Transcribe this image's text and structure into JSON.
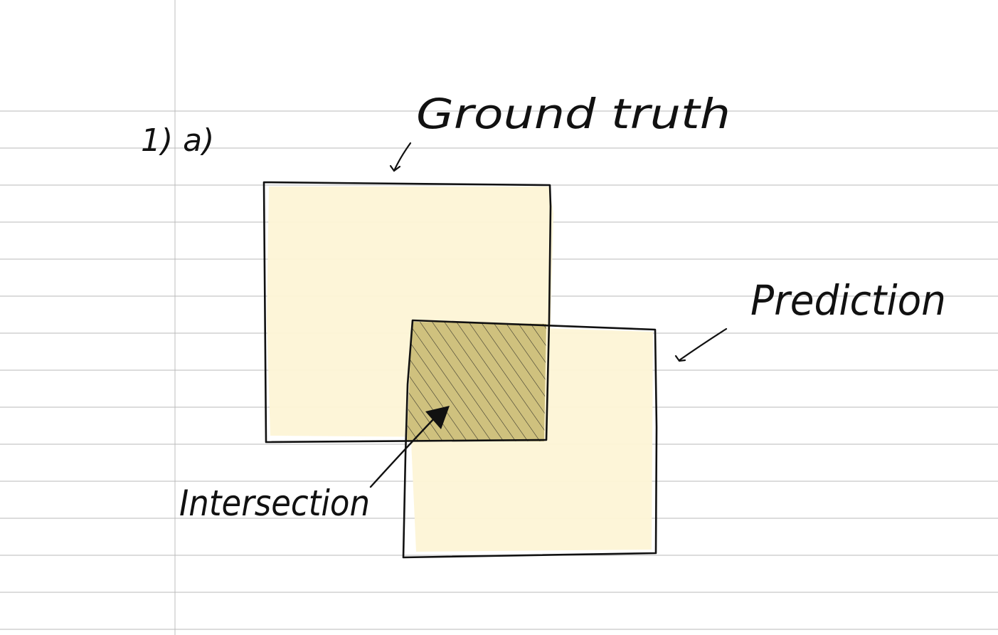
{
  "question_label": "1) a)",
  "labels": {
    "ground_truth": "Ground truth",
    "prediction": "Prediction",
    "intersection": "Intersection"
  },
  "colors": {
    "paper": "#ffffff",
    "rule_line": "#b8b8b8",
    "margin_line": "#bcbcbc",
    "ink": "#111111",
    "highlight": "#fdf4d6",
    "intersection_fill": "#cfc17e"
  }
}
